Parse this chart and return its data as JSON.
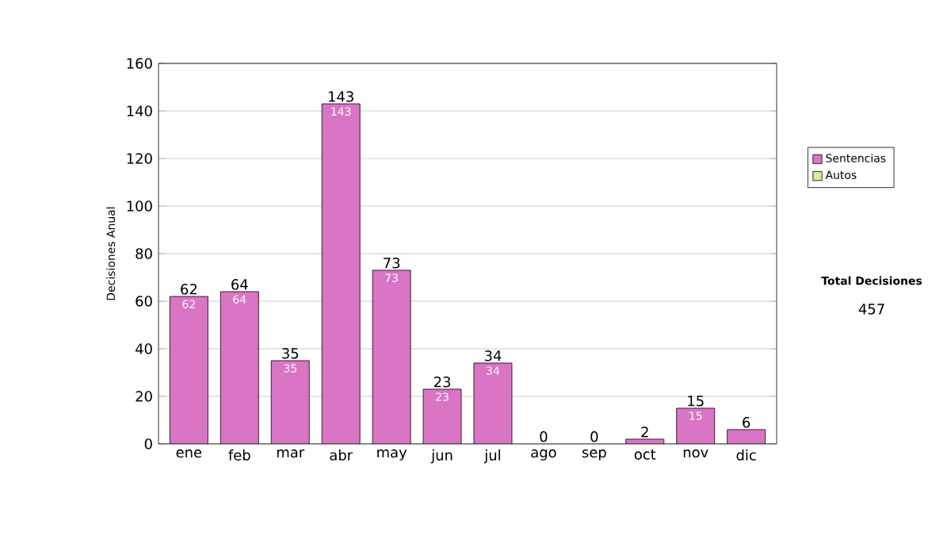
{
  "chart_data": {
    "type": "bar",
    "stacked": true,
    "ylabel": "Decisiones Anual",
    "categories": [
      "ene",
      "feb",
      "mar",
      "abr",
      "may",
      "jun",
      "jul",
      "ago",
      "sep",
      "oct",
      "nov",
      "dic"
    ],
    "series": [
      {
        "name": "Sentencias",
        "color": "#d975c4",
        "values": [
          62,
          64,
          35,
          143,
          73,
          23,
          34,
          0,
          0,
          2,
          15,
          6
        ],
        "value_labels": [
          "62",
          "64",
          "35",
          "143",
          "73",
          "23",
          "34",
          null,
          null,
          null,
          "15",
          null
        ]
      },
      {
        "name": "Autos",
        "color": "#dde89c",
        "values": [
          0,
          0,
          0,
          0,
          0,
          0,
          0,
          0,
          0,
          0,
          0,
          0
        ]
      }
    ],
    "totals": [
      "62",
      "64",
      "35",
      "143",
      "73",
      "23",
      "34",
      "0",
      "0",
      "2",
      "15",
      "6"
    ],
    "ylim": [
      0,
      160
    ],
    "yticks": [
      0,
      20,
      40,
      60,
      80,
      100,
      120,
      140,
      160
    ],
    "grid": "y",
    "legend": "right",
    "annotations": [
      "Total Decisiones",
      "457"
    ]
  }
}
